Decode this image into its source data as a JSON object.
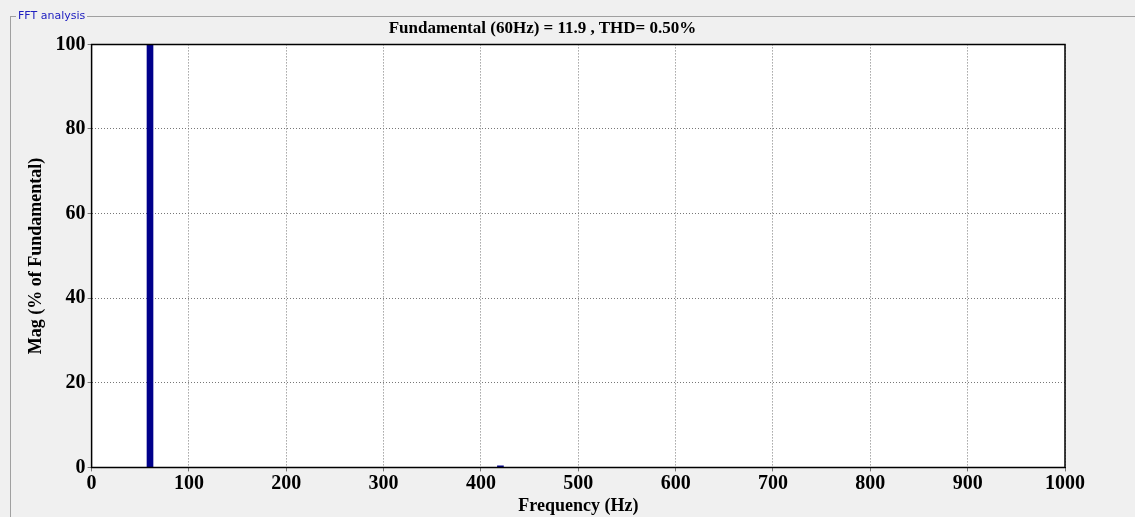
{
  "chart_data": {
    "type": "bar",
    "title": "Fundamental (60Hz) = 11.9 , THD= 0.50%",
    "xlabel": "Frequency (Hz)",
    "ylabel": "Mag (% of Fundamental)",
    "annotations": [
      "FFT analysis"
    ],
    "x": [
      60,
      420
    ],
    "values": [
      100,
      0.4
    ],
    "color": "#00008b",
    "xlim": [
      0,
      1000
    ],
    "xticks": [
      0,
      100,
      200,
      300,
      400,
      500,
      600,
      700,
      800,
      900,
      1000
    ],
    "ylim": [
      0,
      100
    ],
    "yticks": [
      0,
      20,
      40,
      60,
      80,
      100
    ],
    "grid": true,
    "legend": false
  }
}
